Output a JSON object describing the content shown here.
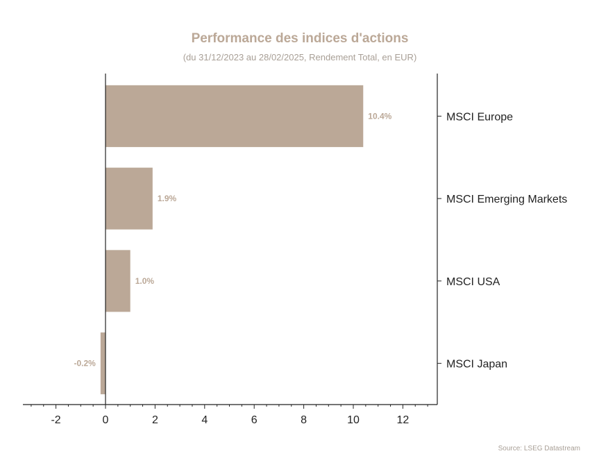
{
  "chart_data": {
    "type": "bar",
    "orientation": "horizontal",
    "title": "Performance des indices d'actions",
    "subtitle": "(du 31/12/2023 au 28/02/2025, Rendement Total, en EUR)",
    "categories": [
      "MSCI Europe",
      "MSCI Emerging Markets",
      "MSCI USA",
      "MSCI Japan"
    ],
    "values": [
      10.4,
      1.9,
      1.0,
      -0.2
    ],
    "data_labels": [
      "10.4%",
      "1.9%",
      "1.0%",
      "-0.2%"
    ],
    "xlim": [
      -3.3,
      13.4
    ],
    "xticks": [
      -2,
      0,
      2,
      4,
      6,
      8,
      10,
      12
    ],
    "xtick_labels": [
      "-2",
      "0",
      "2",
      "4",
      "6",
      "8",
      "10",
      "12"
    ],
    "category_axis_position": "right",
    "grid": false,
    "bar_color": "#bba897"
  },
  "source": "Source: LSEG Datastream"
}
